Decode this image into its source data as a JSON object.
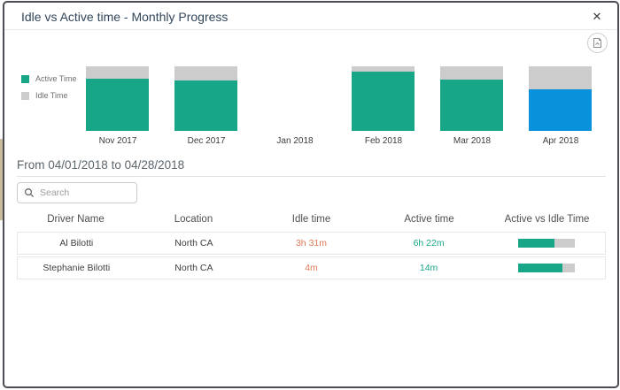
{
  "dialog": {
    "title": "Idle vs Active time - Monthly Progress",
    "close_glyph": "✕"
  },
  "chart_data": {
    "type": "bar",
    "stacked": true,
    "title": "Idle vs Active time - Monthly Progress",
    "categories": [
      "Nov 2017",
      "Dec 2017",
      "Jan 2018",
      "Feb 2018",
      "Mar 2018",
      "Apr 2018"
    ],
    "series": [
      {
        "name": "Active Time",
        "color": "#18a689",
        "values_pct": [
          81,
          78,
          0,
          92,
          79,
          64
        ]
      },
      {
        "name": "Idle Time",
        "color": "#cccccc",
        "values_pct": [
          19,
          22,
          0,
          8,
          21,
          36
        ]
      }
    ],
    "units": "percent of month total (visual estimate, Jan 2018 has no data)",
    "highlight": {
      "category": "Apr 2018",
      "active_color": "#0a91db"
    },
    "legend": [
      "Active Time",
      "Idle Time"
    ],
    "legend_position": "left",
    "grid": false
  },
  "period": {
    "label": "From 04/01/2018 to 04/28/2018"
  },
  "search": {
    "placeholder": "Search"
  },
  "table": {
    "columns": [
      "Driver Name",
      "Location",
      "Idle time",
      "Active time",
      "Active vs Idle Time"
    ],
    "rows": [
      {
        "driver": "Al Bilotti",
        "location": "North CA",
        "idle": "3h 31m",
        "active": "6h 22m",
        "active_pct": 64
      },
      {
        "driver": "Stephanie Bilotti",
        "location": "North CA",
        "idle": "4m",
        "active": "14m",
        "active_pct": 78
      }
    ]
  },
  "colors": {
    "accent_teal": "#18a689",
    "idle_gray": "#cccccc",
    "highlight_blue": "#0a91db",
    "idle_text_orange": "#df7a56",
    "title_text": "#33475c",
    "dialog_border": "#4a4d52"
  }
}
